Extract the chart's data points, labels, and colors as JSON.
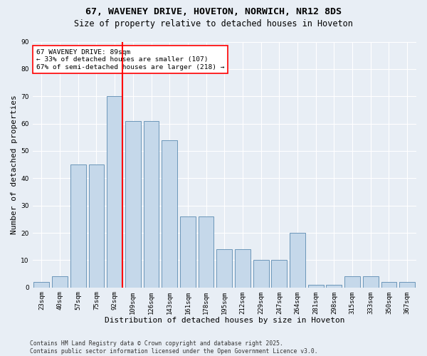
{
  "title_line1": "67, WAVENEY DRIVE, HOVETON, NORWICH, NR12 8DS",
  "title_line2": "Size of property relative to detached houses in Hoveton",
  "xlabel": "Distribution of detached houses by size in Hoveton",
  "ylabel": "Number of detached properties",
  "bar_labels": [
    "23sqm",
    "40sqm",
    "57sqm",
    "75sqm",
    "92sqm",
    "109sqm",
    "126sqm",
    "143sqm",
    "161sqm",
    "178sqm",
    "195sqm",
    "212sqm",
    "229sqm",
    "247sqm",
    "264sqm",
    "281sqm",
    "298sqm",
    "315sqm",
    "333sqm",
    "350sqm",
    "367sqm"
  ],
  "bar_values": [
    2,
    4,
    45,
    45,
    70,
    61,
    61,
    54,
    26,
    26,
    14,
    14,
    10,
    10,
    20,
    1,
    1,
    4,
    4,
    2,
    2
  ],
  "bar_color": "#c5d8ea",
  "bar_edge_color": "#5a8ab0",
  "vline_color": "red",
  "vline_index": 4,
  "annotation_text": "67 WAVENEY DRIVE: 89sqm\n← 33% of detached houses are smaller (107)\n67% of semi-detached houses are larger (218) →",
  "annotation_box_color": "white",
  "annotation_box_edge": "red",
  "ylim": [
    0,
    90
  ],
  "yticks": [
    0,
    10,
    20,
    30,
    40,
    50,
    60,
    70,
    80,
    90
  ],
  "bg_color": "#e8eef5",
  "plot_bg_color": "#e8eef5",
  "footer_line1": "Contains HM Land Registry data © Crown copyright and database right 2025.",
  "footer_line2": "Contains public sector information licensed under the Open Government Licence v3.0.",
  "grid_color": "white",
  "title_fontsize": 9.5,
  "subtitle_fontsize": 8.5,
  "axis_label_fontsize": 8,
  "tick_fontsize": 6.5,
  "annotation_fontsize": 6.8,
  "footer_fontsize": 5.8
}
